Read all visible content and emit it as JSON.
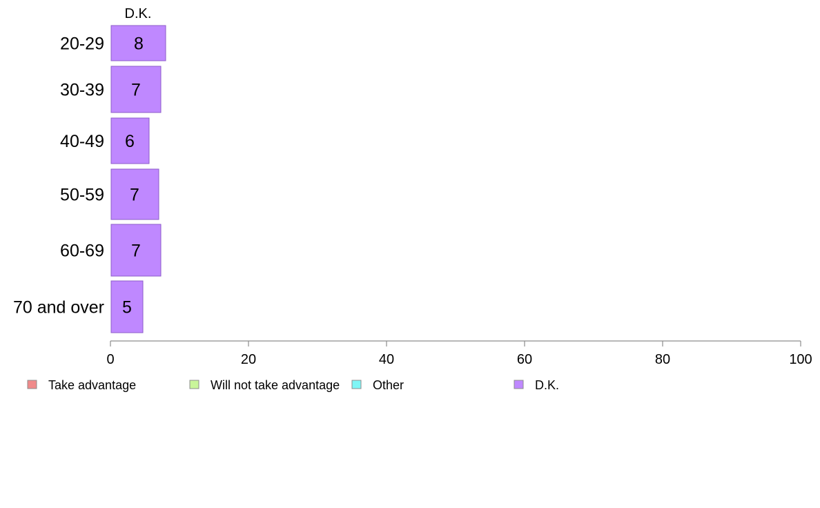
{
  "chart_data": {
    "type": "bar",
    "orientation": "horizontal",
    "categories": [
      "20-29",
      "30-39",
      "40-49",
      "50-59",
      "60-69",
      "70 and over"
    ],
    "series": [
      {
        "name": "D.K.",
        "values": [
          8,
          7,
          6,
          7,
          7,
          5
        ],
        "bar_lengths": [
          8.0,
          7.3,
          5.6,
          7.0,
          7.3,
          4.7
        ],
        "color": "#bf88ff"
      }
    ],
    "panel_label": "D.K.",
    "xlim": [
      0,
      100
    ],
    "x_ticks": [
      0,
      20,
      40,
      60,
      80,
      100
    ],
    "x_tick_labels": [
      "0",
      "20",
      "40",
      "60",
      "80",
      "100"
    ],
    "grid": false,
    "legend": {
      "placement": "bottom",
      "entries": [
        {
          "label": "Take advantage",
          "color": "#f08a8a"
        },
        {
          "label": "Will not take advantage",
          "color": "#c9f59a"
        },
        {
          "label": "Other",
          "color": "#7ff6f6"
        },
        {
          "label": "D.K.",
          "color": "#bf88ff"
        }
      ]
    }
  }
}
